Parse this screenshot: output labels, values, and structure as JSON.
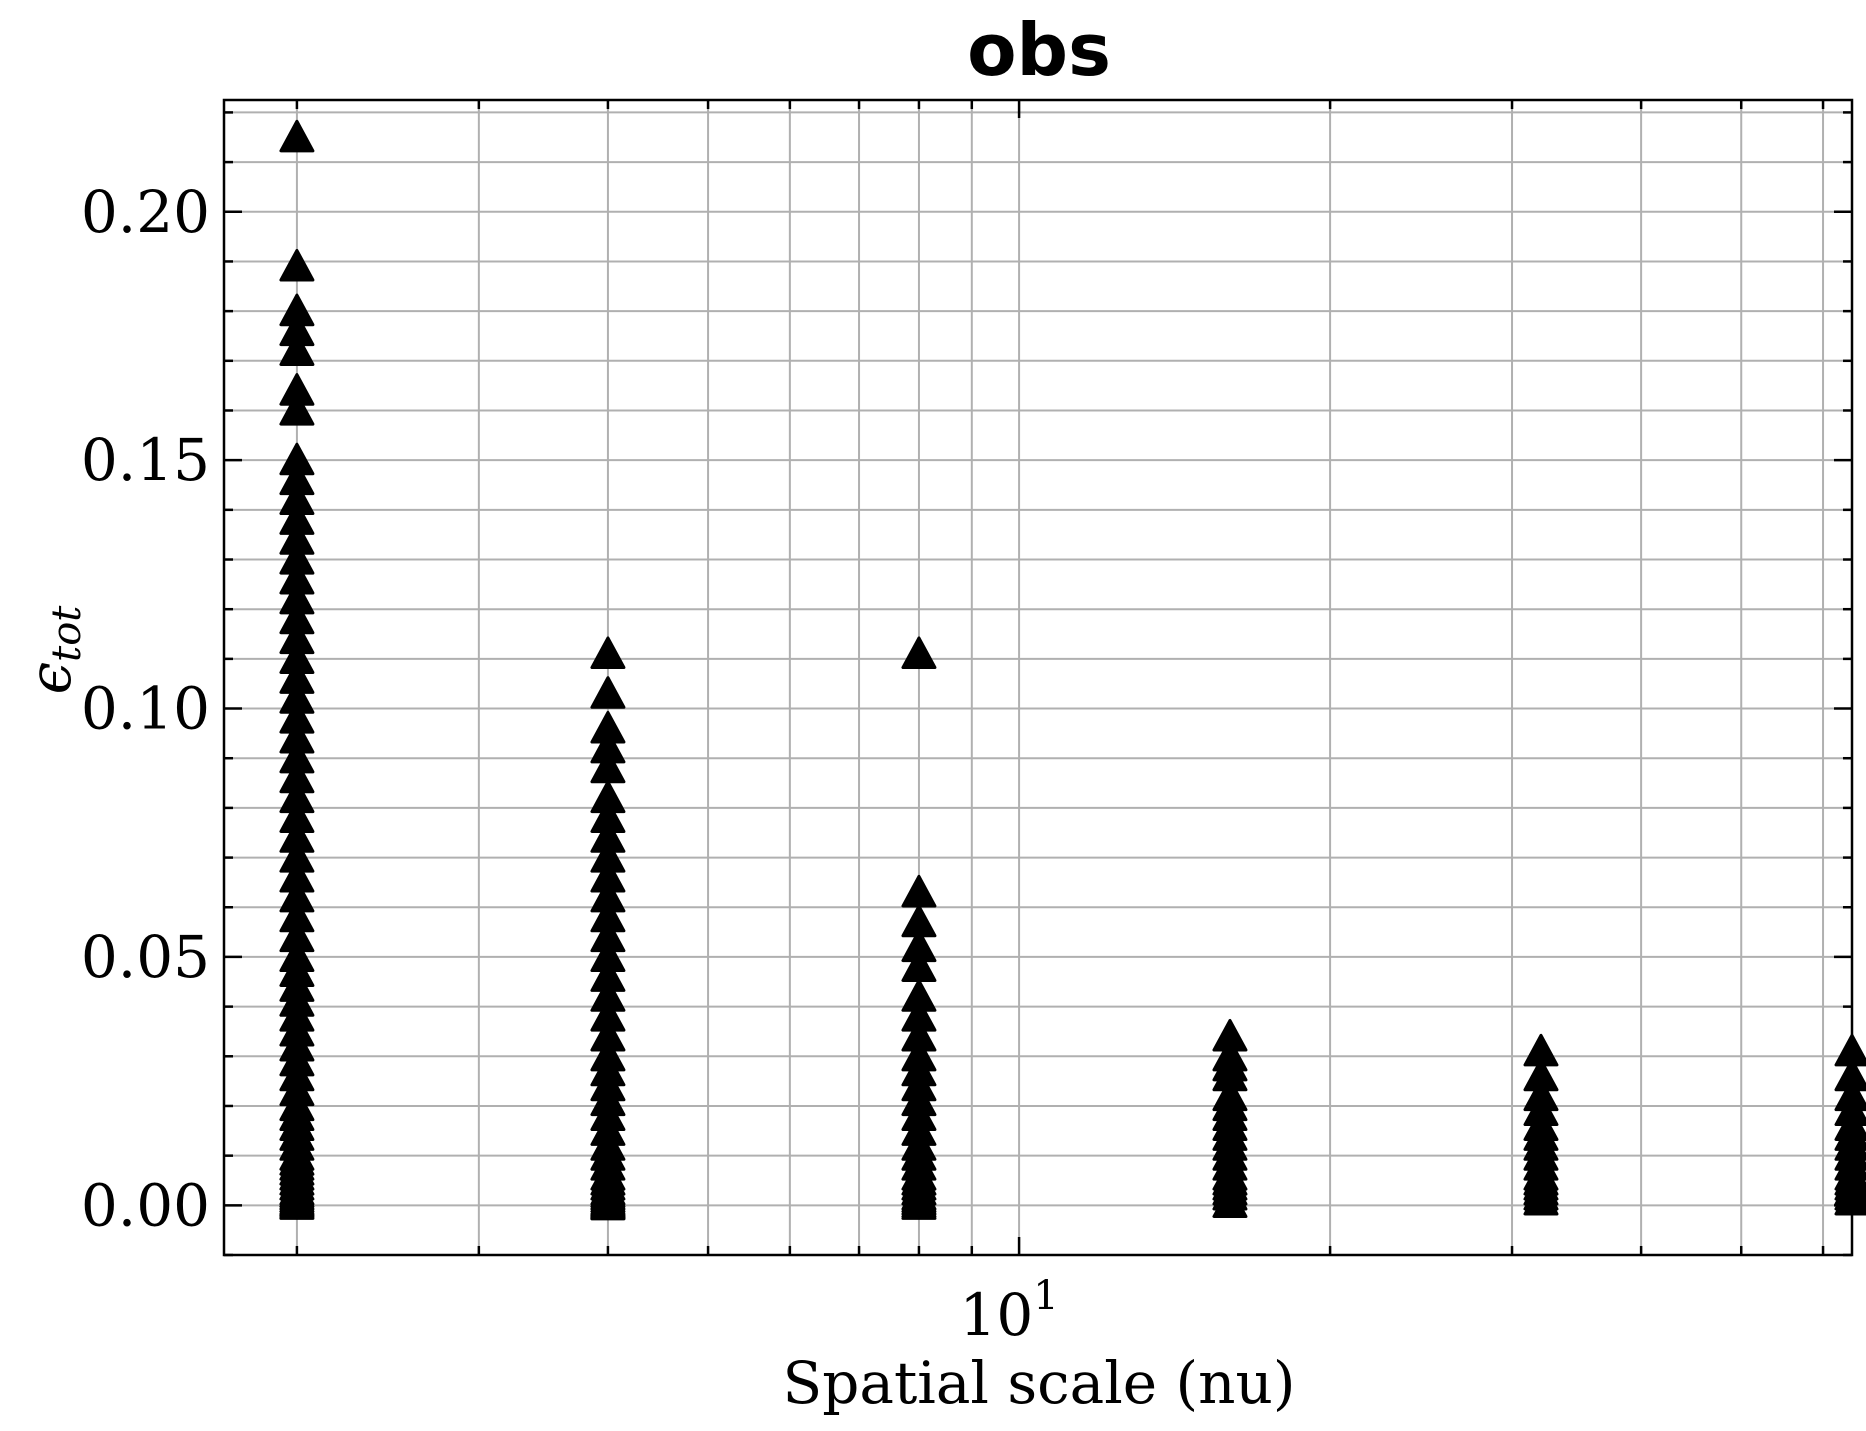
{
  "chart_data": {
    "type": "scatter",
    "title": "obs",
    "xlabel": "Spatial scale (nu)",
    "ylabel": "ϵ",
    "ylabel_subscript": "tot",
    "xscale": "log",
    "xlim": [
      1.7,
      64
    ],
    "ylim": [
      -0.01,
      0.2225
    ],
    "yticks": [
      0.0,
      0.05,
      0.1,
      0.15,
      0.2
    ],
    "ytick_labels": [
      "0.00",
      "0.05",
      "0.10",
      "0.15",
      "0.20"
    ],
    "xtick_major": [
      10
    ],
    "xtick_labels": [
      {
        "base": "10",
        "exp": "1"
      }
    ],
    "grid": true,
    "marker": "triangle-up",
    "color": "#000000",
    "series": [
      {
        "x": [
          2,
          2,
          2,
          2,
          2,
          2,
          2,
          2,
          2,
          2,
          2,
          2,
          2,
          2,
          2,
          2,
          2,
          2,
          2,
          2,
          2,
          2,
          2,
          2,
          2,
          2,
          2,
          2,
          2,
          2,
          2,
          2,
          2,
          2,
          2,
          2,
          2,
          2,
          2,
          2,
          2,
          2,
          2,
          2,
          2,
          2,
          2,
          2,
          2,
          2,
          2,
          2,
          2,
          2,
          2,
          2,
          2,
          2,
          2,
          2,
          2,
          2,
          4,
          4,
          4,
          4,
          4,
          4,
          4,
          4,
          4,
          4,
          4,
          4,
          4,
          4,
          4,
          4,
          4,
          4,
          4,
          4,
          4,
          4,
          4,
          4,
          4,
          4,
          4,
          4,
          4,
          4,
          4,
          4,
          4,
          4,
          4,
          4,
          4,
          4,
          4,
          4,
          4,
          8,
          8,
          8,
          8,
          8,
          8,
          8,
          8,
          8,
          8,
          8,
          8,
          8,
          8,
          8,
          8,
          8,
          8,
          8,
          8,
          8,
          8,
          8,
          8,
          8,
          8,
          16,
          16,
          16,
          16,
          16,
          16,
          16,
          16,
          16,
          16,
          16,
          16,
          16,
          16,
          16,
          16,
          16,
          16,
          32,
          32,
          32,
          32,
          32,
          32,
          32,
          32,
          32,
          32,
          32,
          32,
          32,
          32,
          32,
          64,
          64,
          64,
          64,
          64,
          64,
          64,
          64,
          64,
          64,
          64,
          64,
          64,
          64,
          64
        ],
        "y": [
          0.215,
          0.189,
          0.18,
          0.176,
          0.172,
          0.164,
          0.16,
          0.15,
          0.146,
          0.142,
          0.138,
          0.134,
          0.13,
          0.126,
          0.122,
          0.118,
          0.114,
          0.11,
          0.106,
          0.102,
          0.098,
          0.094,
          0.09,
          0.086,
          0.082,
          0.078,
          0.074,
          0.07,
          0.066,
          0.062,
          0.058,
          0.054,
          0.05,
          0.047,
          0.044,
          0.041,
          0.038,
          0.035,
          0.032,
          0.029,
          0.026,
          0.023,
          0.02,
          0.018,
          0.016,
          0.014,
          0.012,
          0.01,
          0.009,
          0.008,
          0.007,
          0.006,
          0.005,
          0.004,
          0.003,
          0.0025,
          0.002,
          0.0015,
          0.001,
          0.0007,
          0.0004,
          0.0001,
          0.111,
          0.103,
          0.096,
          0.092,
          0.088,
          0.082,
          0.078,
          0.074,
          0.07,
          0.066,
          0.062,
          0.058,
          0.054,
          0.05,
          0.046,
          0.042,
          0.038,
          0.034,
          0.03,
          0.027,
          0.024,
          0.021,
          0.018,
          0.015,
          0.012,
          0.01,
          0.008,
          0.006,
          0.005,
          0.004,
          0.003,
          0.0025,
          0.002,
          0.0015,
          0.001,
          0.0007,
          0.0005,
          0.0003,
          0.0002,
          0.0001,
          0.0,
          0.111,
          0.063,
          0.057,
          0.052,
          0.048,
          0.042,
          0.038,
          0.034,
          0.03,
          0.027,
          0.024,
          0.021,
          0.018,
          0.015,
          0.012,
          0.01,
          0.008,
          0.006,
          0.005,
          0.004,
          0.003,
          0.002,
          0.0015,
          0.001,
          0.0005,
          0.0001,
          0.034,
          0.03,
          0.028,
          0.026,
          0.022,
          0.02,
          0.018,
          0.016,
          0.014,
          0.012,
          0.01,
          0.008,
          0.006,
          0.005,
          0.004,
          0.003,
          0.002,
          0.0005,
          0.031,
          0.026,
          0.022,
          0.019,
          0.016,
          0.014,
          0.012,
          0.01,
          0.008,
          0.006,
          0.005,
          0.004,
          0.003,
          0.002,
          0.001,
          0.031,
          0.026,
          0.022,
          0.019,
          0.016,
          0.014,
          0.012,
          0.01,
          0.008,
          0.006,
          0.005,
          0.004,
          0.003,
          0.002,
          0.001
        ]
      }
    ]
  }
}
